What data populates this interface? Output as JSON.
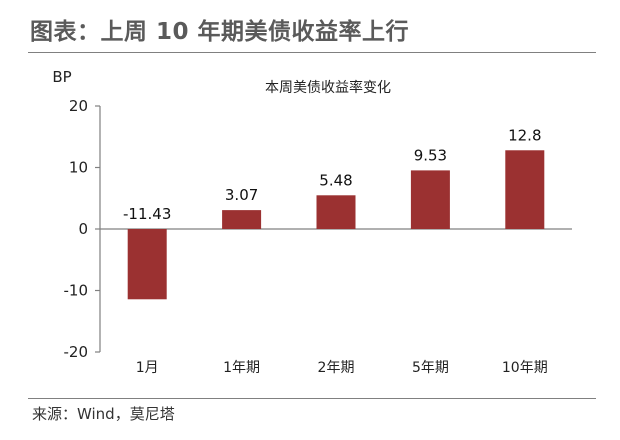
{
  "header": {
    "title": "图表：上周 10 年期美债收益率上行"
  },
  "chart_data": {
    "type": "bar",
    "title": "本周美债收益率变化",
    "ylabel": "BP",
    "xlabel": "",
    "categories": [
      "1月",
      "1年期",
      "2年期",
      "5年期",
      "10年期"
    ],
    "values": [
      -11.43,
      3.07,
      5.48,
      9.53,
      12.8
    ],
    "value_labels": [
      "-11.43",
      "3.07",
      "5.48",
      "9.53",
      "12.8"
    ],
    "ylim": [
      -20,
      20
    ],
    "yticks": [
      20,
      10,
      0,
      -10,
      -20
    ],
    "grid": false,
    "bar_color": "#9b3131"
  },
  "footer": {
    "source": "来源：Wind，莫尼塔"
  }
}
